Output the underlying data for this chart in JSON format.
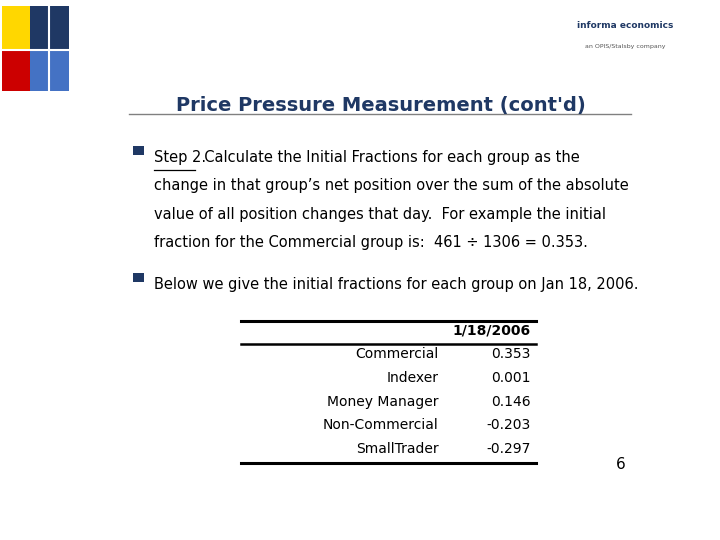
{
  "title": "Price Pressure Measurement (cont'd)",
  "title_color": "#1F3864",
  "background_color": "#FFFFFF",
  "bullet1_label": "Step 2.",
  "bullet1_rest": "  Calculate the Initial Fractions for each group as the",
  "bullet1_line2": "change in that group’s net position over the sum of the absolute",
  "bullet1_line3": "value of all position changes that day.  For example the initial",
  "bullet1_line4": "fraction for the Commercial group is:  461 ÷ 1306 = 0.353.",
  "bullet2_text": "Below we give the initial fractions for each group on Jan 18, 2006.",
  "table_header": "1/18/2006",
  "table_rows": [
    [
      "Commercial",
      "0.353"
    ],
    [
      "Indexer",
      "0.001"
    ],
    [
      "Money Manager",
      "0.146"
    ],
    [
      "Non-Commercial",
      "-0.203"
    ],
    [
      "SmallTrader",
      "-0.297"
    ]
  ],
  "page_number": "6",
  "decoration_colors": {
    "yellow": "#FFD700",
    "red": "#CC0000",
    "blue_dark": "#1F3864",
    "blue_light": "#4472C4"
  },
  "header_line_color": "#808080",
  "bullet_color": "#1F3864",
  "text_color": "#000000",
  "table_line_color": "#000000"
}
